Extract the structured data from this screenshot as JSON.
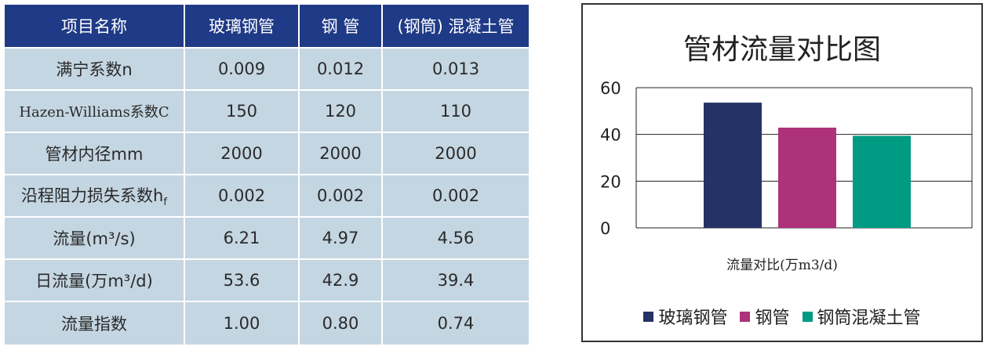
{
  "table": {
    "headers": [
      "项目名称",
      "玻璃钢管",
      "钢 管",
      "(钢筒) 混凝土管"
    ],
    "rows": [
      {
        "label": "满宁系数n",
        "values": [
          "0.009",
          "0.012",
          "0.013"
        ]
      },
      {
        "label": "Hazen-Williams系数C",
        "values": [
          "150",
          "120",
          "110"
        ]
      },
      {
        "label": "管材内径mm",
        "values": [
          "2000",
          "2000",
          "2000"
        ]
      },
      {
        "label": "沿程阻力损失系数hf",
        "values": [
          "0.002",
          "0.002",
          "0.002"
        ]
      },
      {
        "label": "流量(m³/s)",
        "values": [
          "6.21",
          "4.97",
          "4.56"
        ]
      },
      {
        "label": "日流量(万m³/d)",
        "values": [
          "53.6",
          "42.9",
          "39.4"
        ]
      },
      {
        "label": "流量指数",
        "values": [
          "1.00",
          "0.80",
          "0.74"
        ]
      }
    ],
    "colors": {
      "header_bg": "#1f3a86",
      "cell_bg": "#c4d6e2"
    }
  },
  "chart_data": {
    "type": "bar",
    "title": "管材流量对比图",
    "xlabel": "流量对比(万m3/d)",
    "ylabel": "",
    "ylim": [
      0,
      60
    ],
    "yticks": [
      0,
      20,
      40,
      60
    ],
    "grid": true,
    "legend_position": "bottom",
    "categories": [
      "流量对比(万m3/d)"
    ],
    "series": [
      {
        "name": "玻璃钢管",
        "values": [
          53.6
        ],
        "color": "#243266"
      },
      {
        "name": "钢管",
        "values": [
          42.9
        ],
        "color": "#ad327a"
      },
      {
        "name": "钢筒混凝土管",
        "values": [
          39.4
        ],
        "color": "#009b82"
      }
    ]
  }
}
